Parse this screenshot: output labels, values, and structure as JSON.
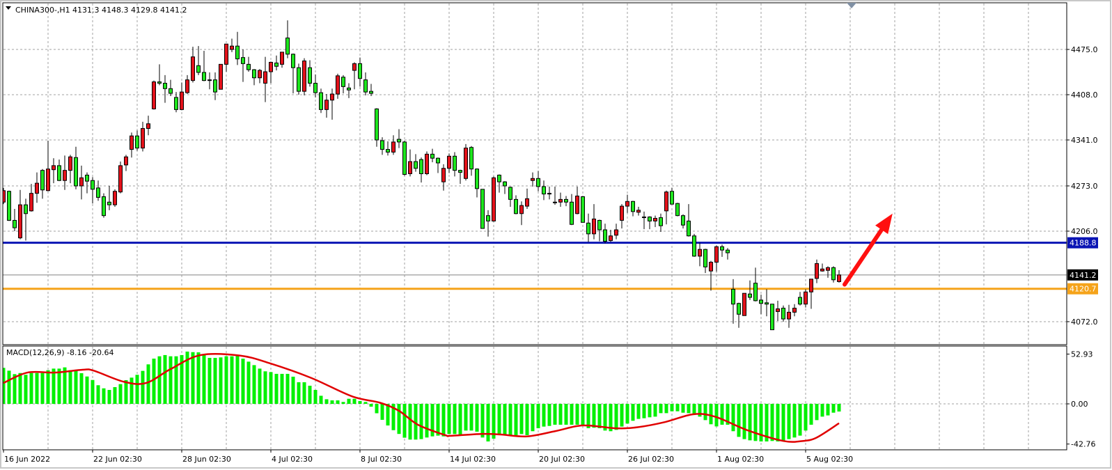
{
  "header": {
    "symbol": "CHINA300-,H1",
    "ohlc_text": "4131.3 4148.3 4129.8 4141.2",
    "menu_icon": "triangle-down-icon"
  },
  "colors": {
    "up_candle": "#e3121b",
    "down_candle": "#1ee61e",
    "support_line": "#0a14b4",
    "bid_line": "#000000",
    "level_line": "#f5a31a",
    "macd_histogram": "#00f000",
    "macd_signal": "#e00000",
    "arrow": "#ff1010",
    "grid": "#a0a0a0"
  },
  "chart_data": [
    {
      "type": "candlestick",
      "title": "CHINA300-,H1",
      "ylim": [
        4040,
        4520
      ],
      "grid": true,
      "price_ticks": [
        "4475.0",
        "4408.0",
        "4341.0",
        "4273.0",
        "4206.0",
        "4072.0"
      ],
      "x_labels": [
        {
          "bar": 0,
          "label": "16 Jun 2022"
        },
        {
          "bar": 16,
          "label": "22 Jun 02:30"
        },
        {
          "bar": 32,
          "label": "28 Jun 02:30"
        },
        {
          "bar": 48,
          "label": "4 Jul 02:30"
        },
        {
          "bar": 64,
          "label": "8 Jul 02:30"
        },
        {
          "bar": 80,
          "label": "14 Jul 02:30"
        },
        {
          "bar": 96,
          "label": "20 Jul 02:30"
        },
        {
          "bar": 112,
          "label": "26 Jul 02:30"
        },
        {
          "bar": 128,
          "label": "1 Aug 02:30"
        },
        {
          "bar": 144,
          "label": "5 Aug 02:30"
        }
      ],
      "ohlc": [
        [
          4249,
          4270,
          4246,
          4266
        ],
        [
          4265,
          4266,
          4221,
          4222
        ],
        [
          4222,
          4239,
          4206,
          4211
        ],
        [
          4196,
          4267,
          4194,
          4245
        ],
        [
          4245,
          4254,
          4192,
          4232
        ],
        [
          4236,
          4276,
          4235,
          4262
        ],
        [
          4262,
          4293,
          4248,
          4277
        ],
        [
          4296,
          4298,
          4254,
          4267
        ],
        [
          4266,
          4340,
          4265,
          4298
        ],
        [
          4297,
          4314,
          4277,
          4303
        ],
        [
          4303,
          4312,
          4280,
          4281
        ],
        [
          4281,
          4318,
          4267,
          4296
        ],
        [
          4296,
          4319,
          4277,
          4316
        ],
        [
          4315,
          4331,
          4268,
          4273
        ],
        [
          4273,
          4303,
          4253,
          4285
        ],
        [
          4289,
          4293,
          4262,
          4280
        ],
        [
          4281,
          4286,
          4247,
          4268
        ],
        [
          4270,
          4281,
          4251,
          4256
        ],
        [
          4257,
          4262,
          4226,
          4229
        ],
        [
          4249,
          4273,
          4237,
          4245
        ],
        [
          4245,
          4268,
          4242,
          4265
        ],
        [
          4264,
          4309,
          4262,
          4303
        ],
        [
          4304,
          4319,
          4295,
          4316
        ],
        [
          4327,
          4352,
          4315,
          4347
        ],
        [
          4347,
          4355,
          4325,
          4329
        ],
        [
          4329,
          4368,
          4324,
          4358
        ],
        [
          4358,
          4377,
          4348,
          4365
        ],
        [
          4387,
          4429,
          4386,
          4427
        ],
        [
          4427,
          4453,
          4422,
          4425
        ],
        [
          4425,
          4437,
          4396,
          4417
        ],
        [
          4417,
          4430,
          4406,
          4410
        ],
        [
          4404,
          4412,
          4382,
          4386
        ],
        [
          4386,
          4426,
          4385,
          4412
        ],
        [
          4411,
          4437,
          4409,
          4430
        ],
        [
          4429,
          4479,
          4426,
          4464
        ],
        [
          4451,
          4480,
          4437,
          4441
        ],
        [
          4441,
          4473,
          4428,
          4429
        ],
        [
          4430,
          4441,
          4416,
          4430
        ],
        [
          4430,
          4441,
          4400,
          4412
        ],
        [
          4416,
          4453,
          4416,
          4453
        ],
        [
          4453,
          4483,
          4442,
          4483
        ],
        [
          4475,
          4491,
          4471,
          4480
        ],
        [
          4480,
          4501,
          4452,
          4461
        ],
        [
          4463,
          4475,
          4427,
          4454
        ],
        [
          4453,
          4464,
          4442,
          4445
        ],
        [
          4445,
          4446,
          4422,
          4433
        ],
        [
          4433,
          4446,
          4425,
          4444
        ],
        [
          4425,
          4464,
          4397,
          4442
        ],
        [
          4442,
          4457,
          4425,
          4456
        ],
        [
          4455,
          4466,
          4444,
          4450
        ],
        [
          4453,
          4471,
          4448,
          4471
        ],
        [
          4492,
          4518,
          4462,
          4468
        ],
        [
          4468,
          4469,
          4410,
          4448
        ],
        [
          4448,
          4454,
          4408,
          4413
        ],
        [
          4413,
          4462,
          4407,
          4458
        ],
        [
          4448,
          4459,
          4420,
          4425
        ],
        [
          4425,
          4438,
          4404,
          4411
        ],
        [
          4411,
          4417,
          4381,
          4386
        ],
        [
          4386,
          4409,
          4374,
          4400
        ],
        [
          4400,
          4417,
          4371,
          4409
        ],
        [
          4409,
          4439,
          4402,
          4436
        ],
        [
          4434,
          4437,
          4410,
          4420
        ],
        [
          4418,
          4425,
          4403,
          4415
        ],
        [
          4444,
          4456,
          4416,
          4454
        ],
        [
          4454,
          4463,
          4420,
          4432
        ],
        [
          4430,
          4441,
          4407,
          4412
        ],
        [
          4413,
          4424,
          4406,
          4410
        ],
        [
          4387,
          4388,
          4331,
          4341
        ],
        [
          4340,
          4345,
          4319,
          4327
        ],
        [
          4327,
          4339,
          4318,
          4323
        ],
        [
          4323,
          4348,
          4319,
          4338
        ],
        [
          4342,
          4357,
          4329,
          4338
        ],
        [
          4338,
          4340,
          4288,
          4290
        ],
        [
          4291,
          4327,
          4287,
          4309
        ],
        [
          4309,
          4320,
          4294,
          4299
        ],
        [
          4312,
          4315,
          4278,
          4291
        ],
        [
          4291,
          4324,
          4289,
          4320
        ],
        [
          4320,
          4328,
          4308,
          4314
        ],
        [
          4314,
          4315,
          4292,
          4307
        ],
        [
          4279,
          4305,
          4266,
          4299
        ],
        [
          4299,
          4321,
          4292,
          4317
        ],
        [
          4317,
          4323,
          4287,
          4296
        ],
        [
          4296,
          4297,
          4276,
          4293
        ],
        [
          4284,
          4335,
          4281,
          4329
        ],
        [
          4330,
          4332,
          4288,
          4298
        ],
        [
          4298,
          4299,
          4256,
          4269
        ],
        [
          4268,
          4268,
          4210,
          4210
        ],
        [
          4229,
          4237,
          4198,
          4221
        ],
        [
          4221,
          4287,
          4220,
          4285
        ],
        [
          4289,
          4290,
          4263,
          4279
        ],
        [
          4279,
          4280,
          4261,
          4273
        ],
        [
          4271,
          4272,
          4242,
          4253
        ],
        [
          4253,
          4259,
          4231,
          4232
        ],
        [
          4232,
          4250,
          4215,
          4244
        ],
        [
          4243,
          4269,
          4239,
          4254
        ],
        [
          4281,
          4293,
          4272,
          4284
        ],
        [
          4284,
          4295,
          4265,
          4272
        ],
        [
          4272,
          4281,
          4252,
          4261
        ],
        [
          4262,
          4272,
          4253,
          4262
        ],
        [
          4249,
          4272,
          4245,
          4249
        ],
        [
          4249,
          4263,
          4242,
          4253
        ],
        [
          4253,
          4258,
          4243,
          4249
        ],
        [
          4249,
          4261,
          4215,
          4216
        ],
        [
          4232,
          4272,
          4231,
          4258
        ],
        [
          4257,
          4258,
          4219,
          4219
        ],
        [
          4218,
          4232,
          4190,
          4202
        ],
        [
          4202,
          4246,
          4194,
          4224
        ],
        [
          4222,
          4223,
          4191,
          4208
        ],
        [
          4208,
          4217,
          4188,
          4191
        ],
        [
          4192,
          4208,
          4190,
          4199
        ],
        [
          4200,
          4217,
          4194,
          4208
        ],
        [
          4222,
          4246,
          4210,
          4243
        ],
        [
          4243,
          4260,
          4233,
          4250
        ],
        [
          4250,
          4251,
          4228,
          4235
        ],
        [
          4234,
          4242,
          4229,
          4237
        ],
        [
          4227,
          4235,
          4209,
          4227
        ],
        [
          4227,
          4228,
          4209,
          4221
        ],
        [
          4221,
          4229,
          4212,
          4225
        ],
        [
          4226,
          4232,
          4205,
          4214
        ],
        [
          4236,
          4266,
          4216,
          4264
        ],
        [
          4265,
          4270,
          4245,
          4246
        ],
        [
          4247,
          4248,
          4228,
          4229
        ],
        [
          4229,
          4231,
          4210,
          4215
        ],
        [
          4221,
          4246,
          4198,
          4199
        ],
        [
          4199,
          4202,
          4168,
          4169
        ],
        [
          4169,
          4189,
          4154,
          4179
        ],
        [
          4179,
          4180,
          4144,
          4153
        ],
        [
          4147,
          4162,
          4118,
          4160
        ],
        [
          4160,
          4185,
          4146,
          4183
        ],
        [
          4183,
          4186,
          4168,
          4178
        ],
        [
          4178,
          4181,
          4164,
          4174
        ],
        [
          4120,
          4135,
          4069,
          4098
        ],
        [
          4099,
          4100,
          4063,
          4083
        ],
        [
          4081,
          4114,
          4081,
          4114
        ],
        [
          4113,
          4133,
          4104,
          4108
        ],
        [
          4129,
          4152,
          4102,
          4103
        ],
        [
          4104,
          4112,
          4083,
          4099
        ],
        [
          4100,
          4120,
          4080,
          4098
        ],
        [
          4098,
          4098,
          4060,
          4060
        ],
        [
          4087,
          4103,
          4073,
          4091
        ],
        [
          4092,
          4096,
          4072,
          4076
        ],
        [
          4076,
          4097,
          4063,
          4086
        ],
        [
          4086,
          4098,
          4080,
          4092
        ],
        [
          4108,
          4116,
          4096,
          4098
        ],
        [
          4098,
          4120,
          4093,
          4116
        ],
        [
          4116,
          4135,
          4091,
          4135
        ],
        [
          4136,
          4164,
          4129,
          4158
        ],
        [
          4147,
          4158,
          4146,
          4150
        ],
        [
          4148,
          4154,
          4137,
          4152
        ],
        [
          4152,
          4154,
          4130,
          4134
        ],
        [
          4131.3,
          4148.3,
          4129.8,
          4141.2
        ]
      ],
      "horizontal_lines": [
        {
          "price": 4188.8,
          "label": "4188.8",
          "role": "support_line"
        },
        {
          "price": 4141.2,
          "label": "4141.2",
          "role": "bid_line"
        },
        {
          "price": 4120.7,
          "label": "4120.7",
          "role": "level_line"
        }
      ],
      "annotation": {
        "type": "arrow",
        "direction": "up",
        "from": {
          "bar": 151,
          "price": 4127
        },
        "to": {
          "bar": 159.6,
          "price": 4232
        }
      }
    },
    {
      "type": "bar+line",
      "title": "MACD(12,26,9) -8.16 -20.64",
      "ylim": [
        -42.76,
        52.93
      ],
      "ticks": [
        "52.93",
        "0.00",
        "-42.76"
      ],
      "histogram": [
        38.3,
        35.3,
        31.6,
        32.8,
        30.9,
        32.8,
        32.8,
        32.8,
        35.8,
        37.5,
        37.5,
        38.8,
        35.8,
        35.3,
        32.6,
        29.1,
        25.4,
        19.8,
        16.5,
        14.8,
        17.8,
        21,
        25.2,
        27.9,
        30.9,
        35.1,
        42,
        48.1,
        50.6,
        51.9,
        50.6,
        50.6,
        51.9,
        55.6,
        55,
        54.8,
        51.9,
        48.9,
        48.9,
        49.4,
        50.6,
        50.6,
        51.1,
        48.1,
        44.9,
        41.2,
        37.5,
        34.6,
        33.8,
        31.9,
        31.9,
        31.9,
        28.9,
        23,
        23,
        19.3,
        14.8,
        8.6,
        4.9,
        3.7,
        3.7,
        2,
        5.4,
        5.4,
        3,
        2,
        -3,
        -10,
        -17,
        -23,
        -28,
        -32,
        -36,
        -38,
        -38,
        -37.5,
        -35.8,
        -34.6,
        -33.8,
        -34.6,
        -32.1,
        -32.1,
        -33.3,
        -28.4,
        -28.4,
        -29.6,
        -35.8,
        -40,
        -37,
        -33.3,
        -33.3,
        -33.3,
        -33.3,
        -32.1,
        -33.3,
        -29.1,
        -25.9,
        -24.2,
        -23.5,
        -22.2,
        -22.2,
        -22.2,
        -22.2,
        -22.2,
        -22.7,
        -25.9,
        -25.4,
        -25.9,
        -28.4,
        -29.1,
        -27.7,
        -24.2,
        -21,
        -18,
        -16,
        -15.3,
        -14.3,
        -13.6,
        -9.9,
        -9.9,
        -7.9,
        -7.9,
        -9.4,
        -9.9,
        -11.6,
        -13.6,
        -17.3,
        -21.7,
        -24,
        -22.2,
        -22.2,
        -29.1,
        -35.1,
        -37.5,
        -38.8,
        -39.5,
        -40,
        -40,
        -39.5,
        -40,
        -39.5,
        -37.5,
        -35.8,
        -33.8,
        -28.4,
        -22.2,
        -17.3,
        -13.6,
        -12.3,
        -9.4,
        -8.16
      ],
      "signal": [
        [
          0,
          22.2
        ],
        [
          4.3,
          33.3
        ],
        [
          9.3,
          33.3
        ],
        [
          14.2,
          36.3
        ],
        [
          16.2,
          35.3
        ],
        [
          21.6,
          23.5
        ],
        [
          25.6,
          22.2
        ],
        [
          30,
          37
        ],
        [
          35.4,
          51.9
        ],
        [
          42.4,
          51.4
        ],
        [
          47.8,
          43.2
        ],
        [
          55.2,
          27.7
        ],
        [
          62.6,
          7.9
        ],
        [
          67.6,
          1.2
        ],
        [
          71,
          -7.4
        ],
        [
          74.4,
          -22.2
        ],
        [
          79.3,
          -33.3
        ],
        [
          80.3,
          -34
        ],
        [
          85.7,
          -32
        ],
        [
          89.2,
          -32.6
        ],
        [
          94,
          -34.6
        ],
        [
          99.1,
          -29
        ],
        [
          104,
          -23
        ],
        [
          110,
          -26
        ],
        [
          114,
          -24.7
        ],
        [
          118.8,
          -19.3
        ],
        [
          123.8,
          -11.1
        ],
        [
          127.7,
          -13.6
        ],
        [
          133.7,
          -28.4
        ],
        [
          140,
          -39.5
        ],
        [
          143.5,
          -39.5
        ],
        [
          146,
          -35.8
        ],
        [
          150,
          -20.64
        ]
      ]
    }
  ]
}
